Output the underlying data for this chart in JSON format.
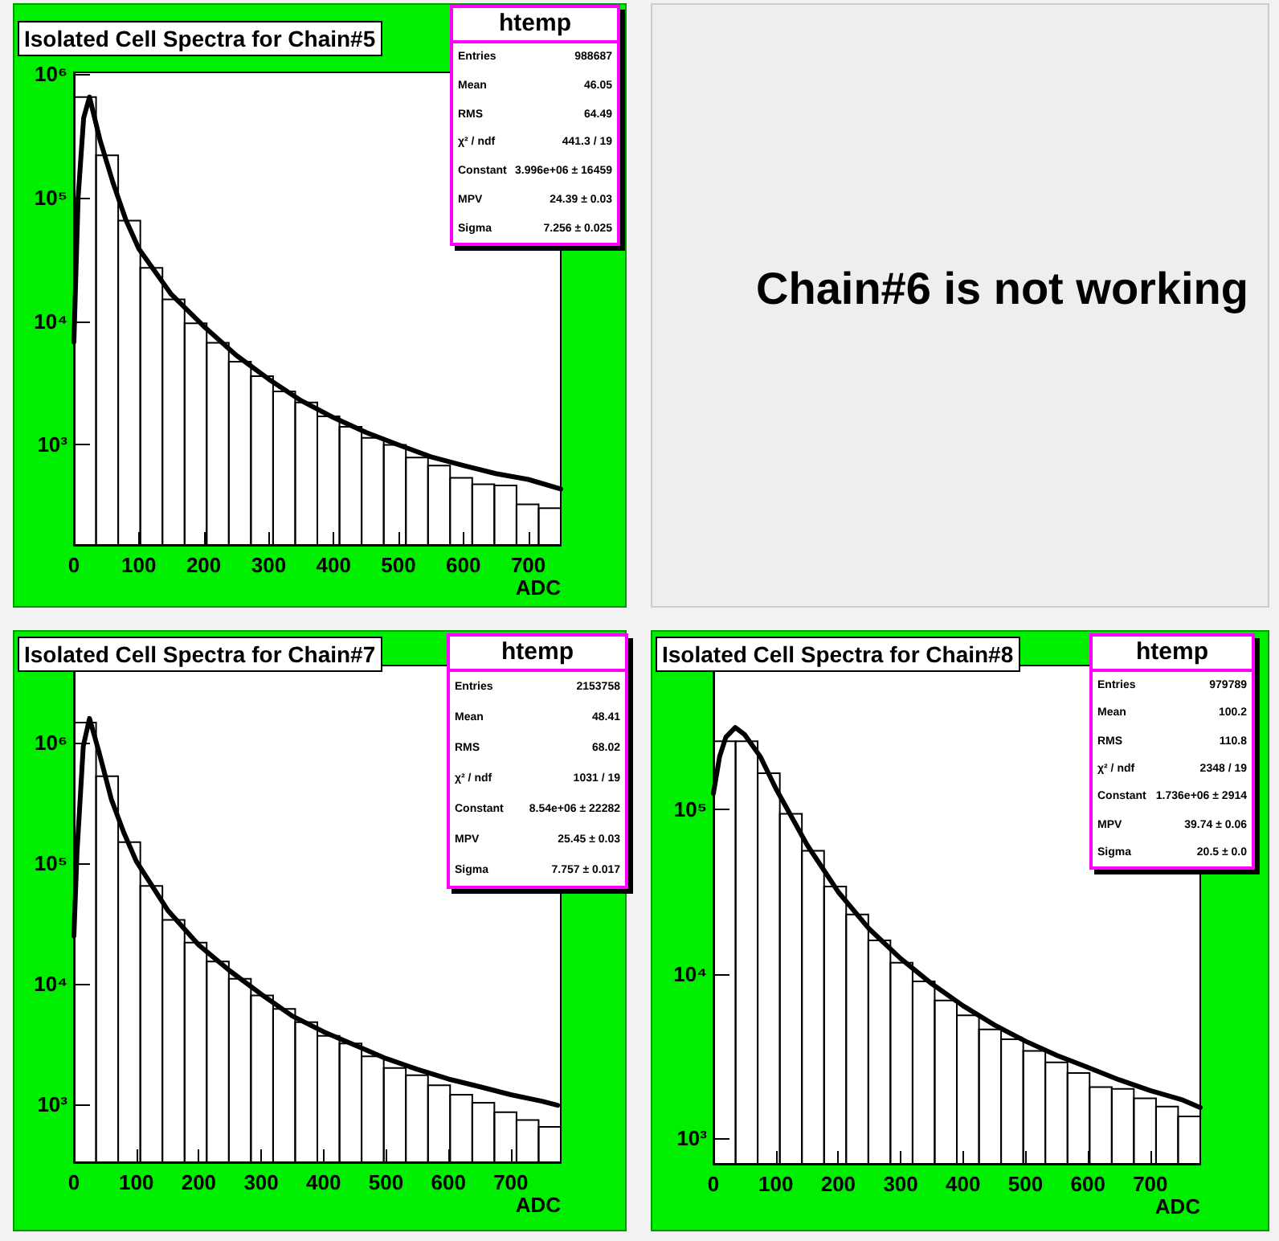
{
  "chart_data": [
    {
      "type": "histogram",
      "title": "Isolated Cell Spectra for Chain#5",
      "xlabel": "ADC",
      "xlim": [
        0,
        750
      ],
      "xticks": [
        0,
        100,
        200,
        300,
        400,
        500,
        600,
        700
      ],
      "ylim": [
        155,
        1030000
      ],
      "yticks": [
        {
          "value": 1000,
          "label": "10³"
        },
        {
          "value": 10000,
          "label": "10⁴"
        },
        {
          "value": 100000,
          "label": "10⁵"
        },
        {
          "value": 1000000,
          "label": "10⁶"
        }
      ],
      "log": "y",
      "grid": false,
      "annotations": [
        "htemp",
        "Entries",
        "988687",
        "Mean",
        "46.05",
        "RMS",
        "64.49",
        "χ² / ndf",
        "441.3 / 19",
        "Constant",
        "3.996e+06 ± 16459",
        "MPV",
        "24.39 ± 0.03",
        "Sigma",
        "7.256 ± 0.025"
      ],
      "series": [
        {
          "type": "histogram",
          "color": "#000000",
          "bins": [
            0,
            34.1,
            68.2,
            102.3,
            136.4,
            170.5,
            204.5,
            238.6,
            272.7,
            306.8,
            340.9,
            375,
            409.1,
            443.2,
            477.3,
            511.4,
            545.5,
            579.5,
            613.6,
            647.7,
            681.8,
            715.9,
            750
          ],
          "values": [
            650000,
            220000,
            65000,
            27000,
            15000,
            9600,
            6700,
            4700,
            3600,
            2700,
            2200,
            1700,
            1400,
            1140,
            1000,
            790,
            680,
            540,
            480,
            470,
            330,
            307
          ]
        },
        {
          "type": "line",
          "color": "#000000",
          "x": [
            0,
            6.5,
            15,
            24,
            40,
            60,
            80,
            100,
            150,
            200,
            250,
            300,
            350,
            400,
            450,
            500,
            550,
            600,
            650,
            700,
            750
          ],
          "values": [
            6800,
            100000,
            440000,
            650000,
            295000,
            133000,
            66000,
            38600,
            16500,
            9100,
            5300,
            3400,
            2280,
            1660,
            1260,
            1000,
            800,
            680,
            585,
            525,
            440
          ]
        }
      ]
    },
    {
      "type": "other",
      "annotations": [
        "Chain#6 is not working"
      ]
    },
    {
      "type": "histogram",
      "title": "Isolated Cell Spectra for Chain#7",
      "xlabel": "ADC",
      "xlim": [
        0,
        780
      ],
      "xticks": [
        0,
        100,
        200,
        300,
        400,
        500,
        600,
        700
      ],
      "ylim": [
        330,
        4400000
      ],
      "yticks": [
        {
          "value": 1000,
          "label": "10³"
        },
        {
          "value": 10000,
          "label": "10⁴"
        },
        {
          "value": 100000,
          "label": "10⁵"
        },
        {
          "value": 1000000,
          "label": "10⁶"
        }
      ],
      "log": "y",
      "grid": false,
      "annotations": [
        "htemp",
        "Entries",
        "2153758",
        "Mean",
        "48.41",
        "RMS",
        "68.02",
        "χ² / ndf",
        "1031 / 19",
        "Constant",
        "8.54e+06 ± 22282",
        "MPV",
        "25.45 ± 0.03",
        "Sigma",
        "7.757 ± 0.017"
      ],
      "series": [
        {
          "type": "histogram",
          "color": "#000000",
          "bins": [
            0,
            35.5,
            70.9,
            106.4,
            141.8,
            177.3,
            212.7,
            248.2,
            283.6,
            319.1,
            354.5,
            390,
            425.5,
            460.9,
            496.4,
            531.8,
            567.3,
            602.7,
            638.2,
            673.6,
            709.1,
            744.5,
            780
          ],
          "values": [
            1480000,
            530000,
            150000,
            65000,
            34000,
            22000,
            15300,
            11000,
            8000,
            6200,
            4800,
            3700,
            3200,
            2500,
            2000,
            1740,
            1440,
            1200,
            1030,
            860,
            740,
            650
          ]
        },
        {
          "type": "line",
          "color": "#000000",
          "x": [
            0,
            5,
            10,
            15,
            25,
            40,
            60,
            80,
            100,
            150,
            200,
            250,
            300,
            350,
            400,
            450,
            500,
            550,
            600,
            650,
            700,
            750,
            775
          ],
          "values": [
            25000,
            125000,
            340000,
            940000,
            1600000,
            850000,
            340000,
            180000,
            104000,
            41000,
            21000,
            12800,
            8200,
            5400,
            4000,
            3100,
            2400,
            1950,
            1620,
            1400,
            1200,
            1060,
            980
          ]
        }
      ]
    },
    {
      "type": "histogram",
      "title": "Isolated Cell Spectra for Chain#8",
      "xlabel": "ADC",
      "xlim": [
        0,
        780
      ],
      "xticks": [
        0,
        100,
        200,
        300,
        400,
        500,
        600,
        700
      ],
      "ylim": [
        700,
        750000
      ],
      "yticks": [
        {
          "value": 1000,
          "label": "10³"
        },
        {
          "value": 10000,
          "label": "10⁴"
        },
        {
          "value": 100000,
          "label": "10⁵"
        }
      ],
      "log": "y",
      "grid": false,
      "annotations": [
        "htemp",
        "Entries",
        "979789",
        "Mean",
        "100.2",
        "RMS",
        "110.8",
        "χ² / ndf",
        "2348 / 19",
        "Constant",
        "1.736e+06 ± 2914",
        "MPV",
        "39.74 ± 0.06",
        "Sigma",
        "20.5 ± 0.0"
      ],
      "series": [
        {
          "type": "histogram",
          "color": "#000000",
          "bins": [
            0,
            35.5,
            70.9,
            106.4,
            141.8,
            177.3,
            212.7,
            248.2,
            283.6,
            319.1,
            354.5,
            390,
            425.5,
            460.9,
            496.4,
            531.8,
            567.3,
            602.7,
            638.2,
            673.6,
            709.1,
            744.5,
            780
          ],
          "values": [
            260000,
            260000,
            166000,
            94000,
            56000,
            34000,
            23000,
            16000,
            11700,
            9000,
            6900,
            5600,
            4600,
            4000,
            3400,
            2900,
            2500,
            2050,
            2000,
            1750,
            1560,
            1360
          ]
        },
        {
          "type": "line",
          "color": "#000000",
          "x": [
            0,
            10,
            20,
            35,
            50,
            75,
            100,
            150,
            200,
            250,
            300,
            350,
            400,
            450,
            500,
            550,
            600,
            650,
            700,
            750,
            780
          ],
          "values": [
            125000,
            210000,
            275000,
            315000,
            285000,
            210000,
            134000,
            61000,
            31500,
            18700,
            12400,
            8700,
            6400,
            4900,
            3900,
            3200,
            2700,
            2270,
            1950,
            1720,
            1540
          ]
        }
      ]
    }
  ]
}
